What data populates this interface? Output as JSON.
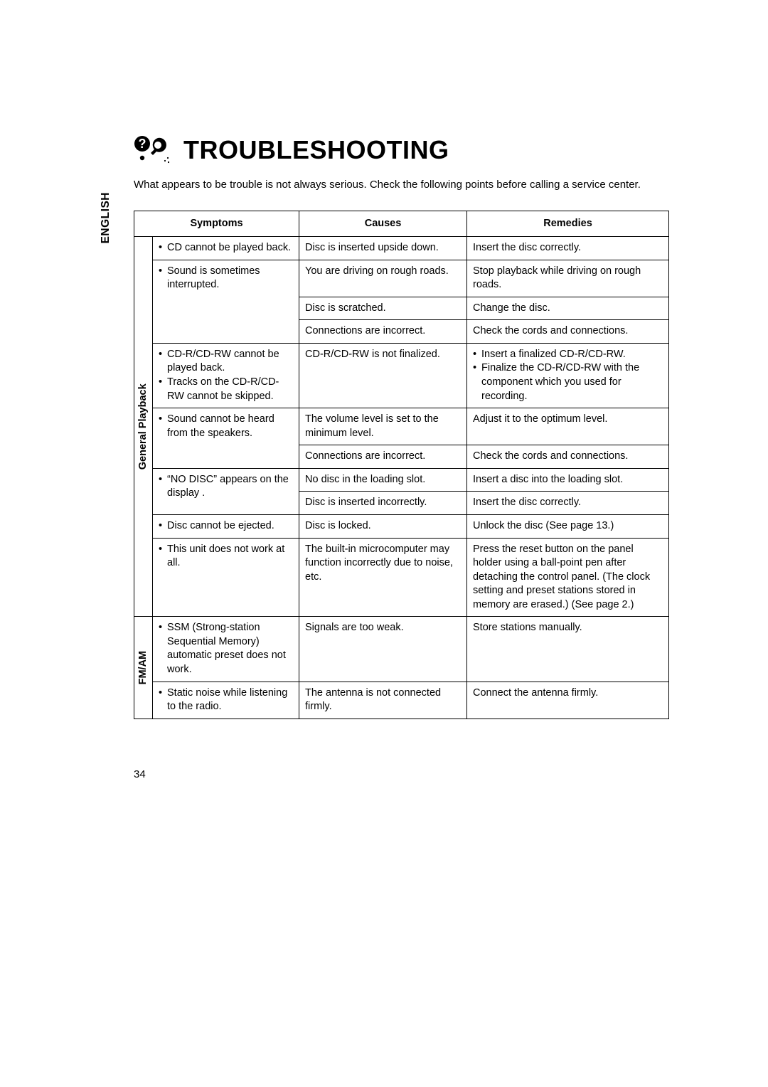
{
  "language_tab": "ENGLISH",
  "heading": "TROUBLESHOOTING",
  "intro": "What appears to be trouble is not always serious. Check the following points before calling a service center.",
  "headers": {
    "symptoms": "Symptoms",
    "causes": "Causes",
    "remedies": "Remedies"
  },
  "sections": [
    {
      "category": "General Playback",
      "rows": [
        {
          "symptoms": [
            "CD cannot be played back."
          ],
          "symptoms_rowspan": 1,
          "cause": "Disc is inserted upside down.",
          "remedy": "Insert the disc correctly."
        },
        {
          "symptoms": [
            "Sound is sometimes interrupted."
          ],
          "symptoms_rowspan": 3,
          "cause": "You are driving on rough roads.",
          "remedy": "Stop playback while driving on rough roads."
        },
        {
          "cause": "Disc is scratched.",
          "remedy": "Change the disc."
        },
        {
          "cause": "Connections are incorrect.",
          "remedy": "Check the cords and connections."
        },
        {
          "symptoms": [
            "CD-R/CD-RW cannot be played back.",
            "Tracks on the CD-R/CD-RW cannot be skipped."
          ],
          "symptoms_rowspan": 1,
          "cause": "CD-R/CD-RW is not finalized.",
          "remedy_list": [
            "Insert a finalized CD-R/CD-RW.",
            "Finalize the CD-R/CD-RW with the component which you used for recording."
          ]
        },
        {
          "symptoms": [
            "Sound cannot be heard from the speakers."
          ],
          "symptoms_rowspan": 2,
          "cause": "The volume level is set to the minimum level.",
          "remedy": "Adjust it to the optimum level."
        },
        {
          "cause": "Connections are incorrect.",
          "remedy": "Check the cords and connections."
        },
        {
          "symptoms": [
            "“NO DISC” appears on the display ."
          ],
          "symptoms_rowspan": 2,
          "cause": "No disc in the loading slot.",
          "remedy": "Insert a disc into the loading slot."
        },
        {
          "cause": "Disc is inserted incorrectly.",
          "remedy": "Insert the disc correctly."
        },
        {
          "symptoms": [
            "Disc cannot be ejected."
          ],
          "symptoms_rowspan": 1,
          "cause": "Disc is locked.",
          "remedy": "Unlock the disc (See page 13.)"
        },
        {
          "symptoms": [
            "This unit does not work at all."
          ],
          "symptoms_rowspan": 1,
          "cause": "The built-in microcomputer may function incorrectly due to noise, etc.",
          "remedy": "Press the reset button on the panel holder using a ball-point pen after detaching the control panel. (The clock setting and preset stations stored in memory are erased.) (See page 2.)"
        }
      ]
    },
    {
      "category": "FM/AM",
      "rows": [
        {
          "symptoms": [
            "SSM (Strong-station Sequential Memory) automatic preset does not work."
          ],
          "symptoms_rowspan": 1,
          "cause": "Signals are too weak.",
          "remedy": "Store stations manually."
        },
        {
          "symptoms": [
            "Static noise while listening to the radio."
          ],
          "symptoms_rowspan": 1,
          "cause": "The antenna is not connected firmly.",
          "remedy": "Connect the antenna firmly."
        }
      ]
    }
  ],
  "page_number": "34"
}
